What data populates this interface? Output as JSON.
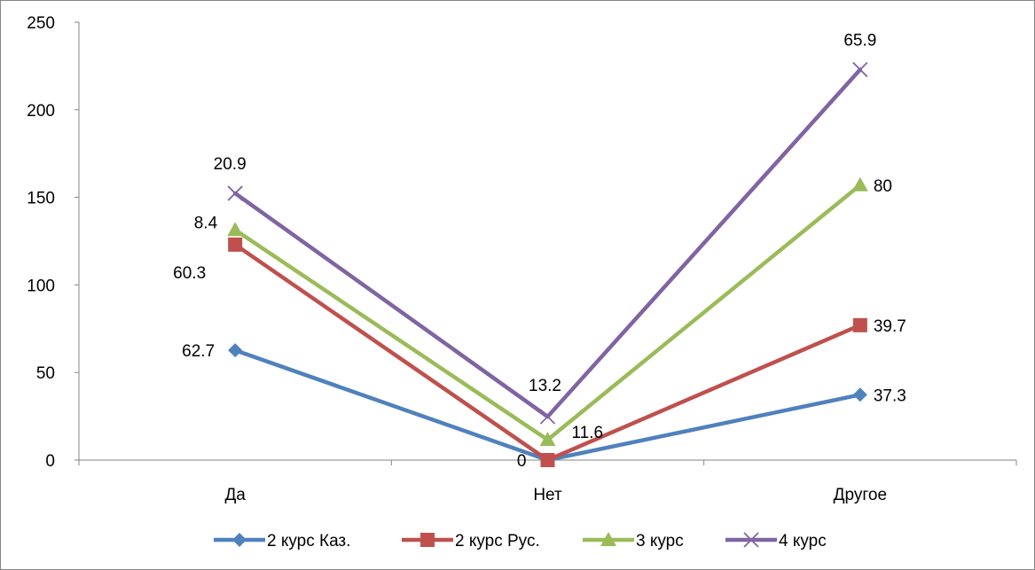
{
  "chart_data": {
    "type": "line",
    "stacked": true,
    "title": "",
    "xlabel": "",
    "ylabel": "",
    "categories": [
      "Да",
      "Нет",
      "Другое"
    ],
    "ylim": [
      0,
      250
    ],
    "yticks": [
      0,
      50,
      100,
      150,
      200,
      250
    ],
    "grid": false,
    "legend_position": "bottom",
    "series": [
      {
        "name": "2 курс Каз.",
        "values": [
          62.7,
          0,
          37.3
        ],
        "labels": [
          "62.7",
          "",
          "37.3"
        ],
        "color": "#4f81bd",
        "marker": "diamond"
      },
      {
        "name": "2 курс Рус.",
        "values": [
          60.3,
          0,
          39.7
        ],
        "labels": [
          "60.3",
          "0",
          "39.7"
        ],
        "color": "#c0504d",
        "marker": "square"
      },
      {
        "name": "3 курс",
        "values": [
          8.4,
          11.6,
          80
        ],
        "labels": [
          "8.4",
          "11.6",
          "80"
        ],
        "color": "#9bbb59",
        "marker": "triangle"
      },
      {
        "name": "4 курс",
        "values": [
          20.9,
          13.2,
          65.9
        ],
        "labels": [
          "20.9",
          "13.2",
          "65.9"
        ],
        "color": "#8064a2",
        "marker": "x"
      }
    ]
  }
}
